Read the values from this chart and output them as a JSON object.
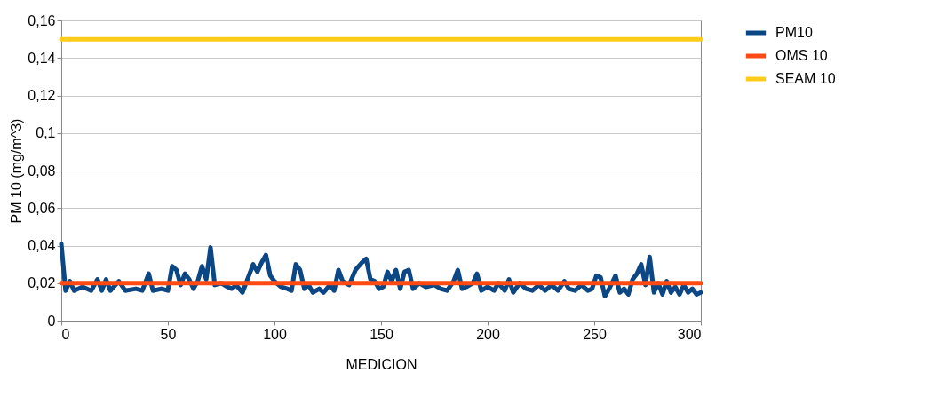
{
  "chart_data": {
    "type": "line",
    "xlabel": "MEDICION",
    "ylabel": "PM 10 (mg/m^3)",
    "xlim": [
      0,
      300
    ],
    "xticks": [
      0,
      50,
      100,
      150,
      200,
      250,
      300
    ],
    "ylim": [
      0,
      0.16
    ],
    "yticks": [
      0,
      {
        "value": 0.02,
        "label": "0,02"
      },
      {
        "value": 0.04,
        "label": "0,04"
      },
      {
        "value": 0.06,
        "label": "0,06"
      },
      {
        "value": 0.08,
        "label": "0,08"
      },
      {
        "value": 0.1,
        "label": "0,1"
      },
      {
        "value": 0.12,
        "label": "0,12"
      },
      {
        "value": 0.14,
        "label": "0,14"
      },
      {
        "value": 0.16,
        "label": "0,16"
      }
    ],
    "grid": "y",
    "legend": "right",
    "marker": "none",
    "line_style": "solid",
    "series": [
      {
        "name": "PM10",
        "color": "#0b4685",
        "x": [
          0,
          2,
          4,
          6,
          10,
          14,
          17,
          19,
          21,
          23,
          27,
          30,
          35,
          38,
          41,
          43,
          47,
          50,
          52,
          54,
          56,
          58,
          60,
          62,
          64,
          66,
          68,
          70,
          72,
          75,
          78,
          80,
          82,
          85,
          88,
          90,
          92,
          94,
          96,
          98,
          100,
          103,
          106,
          108,
          110,
          112,
          114,
          116,
          118,
          121,
          123,
          126,
          128,
          130,
          132,
          135,
          138,
          141,
          143,
          145,
          147,
          149,
          151,
          153,
          155,
          157,
          159,
          161,
          163,
          165,
          168,
          171,
          175,
          178,
          181,
          184,
          186,
          188,
          190,
          193,
          195,
          197,
          200,
          203,
          205,
          208,
          210,
          212,
          215,
          218,
          221,
          224,
          227,
          230,
          233,
          236,
          238,
          241,
          244,
          247,
          249,
          251,
          253,
          255,
          257,
          260,
          262,
          264,
          266,
          268,
          270,
          272,
          274,
          276,
          278,
          280,
          282,
          284,
          286,
          288,
          290,
          292,
          294,
          296,
          298,
          300
        ],
        "values": [
          0.041,
          0.016,
          0.021,
          0.016,
          0.018,
          0.016,
          0.022,
          0.016,
          0.022,
          0.016,
          0.021,
          0.016,
          0.017,
          0.016,
          0.025,
          0.016,
          0.017,
          0.016,
          0.029,
          0.027,
          0.019,
          0.025,
          0.022,
          0.017,
          0.021,
          0.029,
          0.022,
          0.039,
          0.019,
          0.02,
          0.018,
          0.017,
          0.019,
          0.015,
          0.024,
          0.03,
          0.026,
          0.031,
          0.035,
          0.024,
          0.021,
          0.018,
          0.017,
          0.016,
          0.03,
          0.027,
          0.017,
          0.019,
          0.015,
          0.017,
          0.015,
          0.019,
          0.016,
          0.027,
          0.021,
          0.019,
          0.027,
          0.031,
          0.033,
          0.022,
          0.021,
          0.017,
          0.018,
          0.026,
          0.021,
          0.027,
          0.017,
          0.026,
          0.027,
          0.017,
          0.02,
          0.018,
          0.019,
          0.017,
          0.016,
          0.021,
          0.027,
          0.017,
          0.018,
          0.02,
          0.025,
          0.016,
          0.018,
          0.016,
          0.02,
          0.016,
          0.022,
          0.015,
          0.02,
          0.017,
          0.016,
          0.019,
          0.016,
          0.019,
          0.016,
          0.021,
          0.017,
          0.016,
          0.019,
          0.016,
          0.017,
          0.024,
          0.023,
          0.013,
          0.017,
          0.024,
          0.015,
          0.017,
          0.014,
          0.022,
          0.025,
          0.03,
          0.019,
          0.034,
          0.015,
          0.02,
          0.014,
          0.021,
          0.015,
          0.018,
          0.014,
          0.019,
          0.015,
          0.017,
          0.014,
          0.015
        ]
      },
      {
        "name": "OMS 10",
        "color": "#ff4a14",
        "x": [
          0,
          300
        ],
        "values": [
          0.02,
          0.02
        ]
      },
      {
        "name": "SEAM 10",
        "color": "#ffcc1a",
        "x": [
          0,
          300
        ],
        "values": [
          0.15,
          0.15
        ]
      }
    ]
  }
}
